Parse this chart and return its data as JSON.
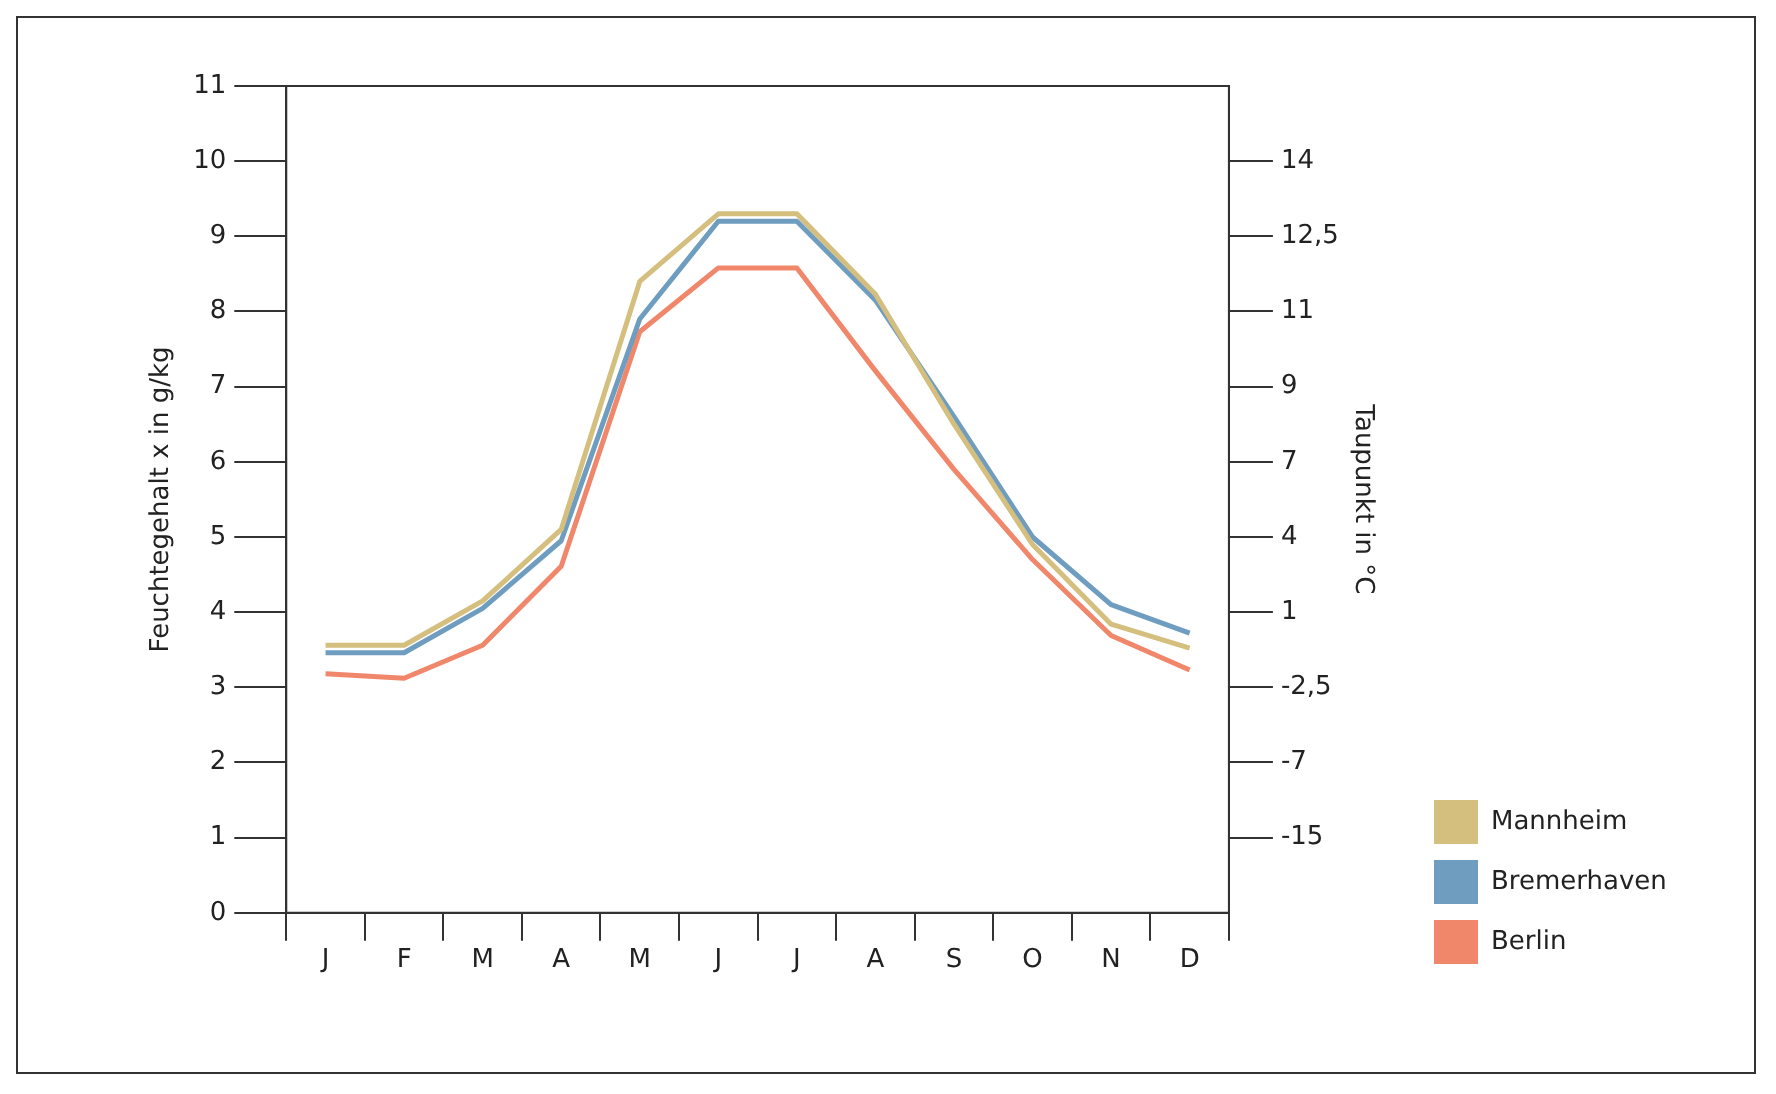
{
  "chart_data": {
    "type": "line",
    "ylabel": "Feuchtegehalt x in g/kg",
    "y2label": "Taupunkt in °C",
    "categories": [
      "J",
      "F",
      "M",
      "A",
      "M",
      "J",
      "J",
      "A",
      "S",
      "O",
      "N",
      "D"
    ],
    "series": [
      {
        "name": "Mannheim",
        "color": "#d4bf7e",
        "values": [
          3.56,
          3.56,
          4.15,
          5.1,
          8.4,
          9.3,
          9.3,
          8.23,
          6.5,
          4.9,
          3.84,
          3.52
        ]
      },
      {
        "name": "Bremerhaven",
        "color": "#6f9dc0",
        "values": [
          3.46,
          3.46,
          4.05,
          4.95,
          7.9,
          9.2,
          9.2,
          8.15,
          6.6,
          5.0,
          4.1,
          3.72
        ]
      },
      {
        "name": "Berlin",
        "color": "#f0876a",
        "values": [
          3.18,
          3.12,
          3.56,
          4.61,
          7.73,
          8.58,
          8.58,
          7.21,
          5.9,
          4.7,
          3.69,
          3.23
        ]
      }
    ],
    "ylim": [
      0,
      11
    ],
    "yticks": [
      0,
      1,
      2,
      3,
      4,
      5,
      6,
      7,
      8,
      9,
      10,
      11
    ],
    "y2_categories": [
      null,
      "14",
      "12,5",
      "11",
      "9",
      "7",
      "4",
      "1",
      "-2,5",
      "-7",
      "-15",
      null
    ],
    "grid": false,
    "legend": "bottom right",
    "marker": "none",
    "line_style": "solid"
  }
}
